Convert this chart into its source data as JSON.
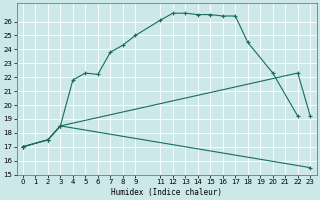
{
  "xlabel": "Humidex (Indice chaleur)",
  "background_color": "#cce8e8",
  "line_color": "#1a6b5a",
  "grid_color": "#b8d8d8",
  "xlim": [
    -0.5,
    23.5
  ],
  "ylim": [
    15,
    27.3
  ],
  "xtick_vals": [
    0,
    1,
    2,
    3,
    4,
    5,
    6,
    7,
    8,
    9,
    11,
    12,
    13,
    14,
    15,
    16,
    17,
    18,
    19,
    20,
    21,
    22,
    23
  ],
  "ytick_vals": [
    15,
    16,
    17,
    18,
    19,
    20,
    21,
    22,
    23,
    24,
    25,
    26
  ],
  "curve1_x": [
    0,
    2,
    3,
    4,
    5,
    6,
    7,
    8,
    9,
    11,
    12,
    13,
    14,
    15,
    16,
    17,
    18,
    20,
    22
  ],
  "curve1_y": [
    17.0,
    17.5,
    18.5,
    21.8,
    22.3,
    22.2,
    23.8,
    24.3,
    25.0,
    26.1,
    26.6,
    26.6,
    26.5,
    26.5,
    26.4,
    26.4,
    24.5,
    22.3,
    19.2
  ],
  "curve2_x": [
    0,
    2,
    3,
    22,
    23
  ],
  "curve2_y": [
    17.0,
    17.5,
    18.5,
    22.3,
    19.2
  ],
  "curve3_x": [
    0,
    2,
    3,
    23
  ],
  "curve3_y": [
    17.0,
    17.5,
    18.5,
    15.5
  ]
}
